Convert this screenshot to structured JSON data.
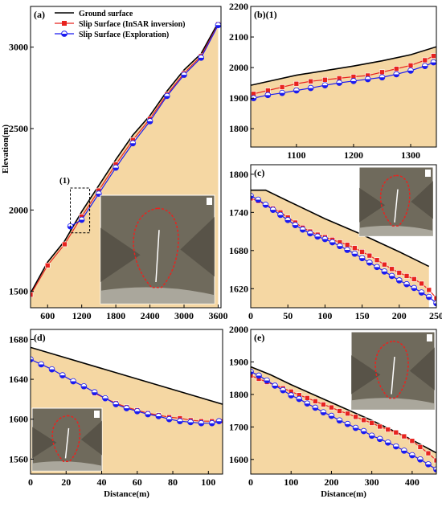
{
  "colors": {
    "fill": "#f5d7a3",
    "ground": "#000000",
    "insar": "#e8231f",
    "exploration": "#1b1bf0",
    "outline": "#e8231f",
    "satellite": "#6f6a5c"
  },
  "chart_data": [
    {
      "id": "a",
      "type": "line",
      "panel_label": "(a)",
      "xlabel": "",
      "ylabel": "Elevation(m)",
      "xlim": [
        300,
        3650
      ],
      "ylim": [
        1400,
        3250
      ],
      "xticks": [
        600,
        1200,
        1800,
        2400,
        3000,
        3600
      ],
      "yticks": [
        1500,
        2000,
        2500,
        3000
      ],
      "legend": [
        "Ground surface",
        "Slip Surface (InSAR inversion)",
        "Slip Surface (Exploration)"
      ],
      "annotation": "(1)",
      "ground_x": [
        300,
        600,
        900,
        1200,
        1500,
        1800,
        2100,
        2400,
        2700,
        3000,
        3300,
        3600
      ],
      "ground_y": [
        1490,
        1680,
        1810,
        1990,
        2150,
        2310,
        2460,
        2580,
        2730,
        2860,
        2960,
        3150
      ],
      "insar_x": [
        300,
        600,
        900,
        1200,
        1500,
        1800,
        2100,
        2400,
        2700,
        3000,
        3300,
        3600
      ],
      "insar_y": [
        1480,
        1660,
        1790,
        1960,
        2120,
        2280,
        2430,
        2560,
        2710,
        2840,
        2945,
        3140
      ],
      "exploration_x": [
        1000,
        1200,
        1500,
        1800,
        2100,
        2400,
        2700,
        3000,
        3300,
        3600
      ],
      "exploration_y": [
        1900,
        1940,
        2100,
        2260,
        2410,
        2545,
        2700,
        2830,
        2935,
        3135
      ]
    },
    {
      "id": "b",
      "type": "line",
      "panel_label": "(b)(1)",
      "xlim": [
        1020,
        1345
      ],
      "ylim": [
        1740,
        2200
      ],
      "xticks": [
        1100,
        1200,
        1300
      ],
      "yticks": [
        1800,
        1900,
        2000,
        2100,
        2200
      ],
      "ground_x": [
        1020,
        1100,
        1200,
        1250,
        1300,
        1345
      ],
      "ground_y": [
        1942,
        1975,
        2005,
        2022,
        2042,
        2068
      ],
      "insar_x": [
        1025,
        1050,
        1075,
        1100,
        1125,
        1150,
        1175,
        1200,
        1225,
        1250,
        1275,
        1300,
        1325,
        1340
      ],
      "insar_y": [
        1914,
        1925,
        1936,
        1947,
        1955,
        1960,
        1965,
        1970,
        1974,
        1985,
        1996,
        2007,
        2024,
        2038
      ],
      "exploration_x": [
        1025,
        1050,
        1075,
        1100,
        1125,
        1150,
        1175,
        1200,
        1225,
        1250,
        1275,
        1300,
        1325,
        1340
      ],
      "exploration_y": [
        1900,
        1910,
        1917,
        1925,
        1933,
        1942,
        1950,
        1956,
        1962,
        1968,
        1978,
        1990,
        2005,
        2017
      ]
    },
    {
      "id": "c",
      "type": "line",
      "panel_label": "(c)",
      "xlim": [
        0,
        250
      ],
      "ylim": [
        1590,
        1815
      ],
      "xticks": [
        0,
        50,
        100,
        150,
        200,
        250
      ],
      "yticks": [
        1620,
        1680,
        1740,
        1800
      ],
      "ground_x": [
        0,
        20,
        50,
        100,
        150,
        200,
        240
      ],
      "ground_y": [
        1775,
        1775,
        1758,
        1730,
        1705,
        1678,
        1655
      ],
      "insar_x": [
        0,
        10,
        20,
        30,
        40,
        50,
        60,
        70,
        80,
        90,
        100,
        110,
        120,
        130,
        140,
        150,
        160,
        170,
        180,
        190,
        200,
        210,
        220,
        230,
        240,
        250
      ],
      "insar_y": [
        1762,
        1758,
        1752,
        1746,
        1740,
        1732,
        1724,
        1716,
        1710,
        1705,
        1701,
        1697,
        1693,
        1689,
        1684,
        1678,
        1672,
        1665,
        1658,
        1651,
        1645,
        1640,
        1635,
        1628,
        1618,
        1605
      ],
      "exploration_x": [
        0,
        10,
        20,
        30,
        40,
        50,
        60,
        70,
        80,
        90,
        100,
        110,
        120,
        130,
        140,
        150,
        160,
        170,
        180,
        190,
        200,
        210,
        220,
        230,
        240,
        250
      ],
      "exploration_y": [
        1766,
        1760,
        1752,
        1744,
        1736,
        1728,
        1720,
        1713,
        1707,
        1702,
        1698,
        1693,
        1687,
        1681,
        1675,
        1668,
        1661,
        1654,
        1647,
        1640,
        1633,
        1627,
        1621,
        1614,
        1607,
        1597
      ]
    },
    {
      "id": "d",
      "type": "line",
      "panel_label": "(d)",
      "xlabel": "Distance(m)",
      "xlim": [
        0,
        108
      ],
      "ylim": [
        1545,
        1690
      ],
      "xticks": [
        0,
        20,
        40,
        60,
        80,
        100
      ],
      "yticks": [
        1560,
        1600,
        1640,
        1680
      ],
      "ground_x": [
        0,
        108
      ],
      "ground_y": [
        1672,
        1615
      ],
      "insar_x": [
        36,
        42,
        48,
        54,
        60,
        66,
        72,
        78,
        84,
        90,
        96,
        102,
        108
      ],
      "insar_y": [
        1626,
        1621,
        1616,
        1612,
        1609,
        1606,
        1604,
        1602,
        1601,
        1599,
        1598,
        1598,
        1598
      ],
      "exploration_x": [
        0,
        6,
        12,
        18,
        24,
        30,
        36,
        42,
        48,
        54,
        60,
        66,
        72,
        78,
        84,
        90,
        96,
        102,
        106
      ],
      "exploration_y": [
        1660,
        1655,
        1650,
        1644,
        1638,
        1633,
        1627,
        1621,
        1615,
        1611,
        1608,
        1605,
        1603,
        1600,
        1598,
        1597,
        1596,
        1596,
        1598
      ]
    },
    {
      "id": "e",
      "type": "line",
      "panel_label": "(e)",
      "xlabel": "Distance(m)",
      "xlim": [
        0,
        460
      ],
      "ylim": [
        1555,
        2000
      ],
      "xticks": [
        0,
        100,
        200,
        300,
        400
      ],
      "yticks": [
        1600,
        1700,
        1800,
        1900,
        2000
      ],
      "ground_x": [
        0,
        50,
        100,
        200,
        300,
        400,
        460
      ],
      "ground_y": [
        1885,
        1860,
        1830,
        1775,
        1720,
        1660,
        1620
      ],
      "insar_x": [
        0,
        20,
        40,
        60,
        80,
        100,
        120,
        140,
        160,
        180,
        200,
        220,
        240,
        260,
        280,
        300,
        320,
        340,
        360,
        380,
        400,
        420,
        440,
        460
      ],
      "insar_y": [
        1858,
        1848,
        1838,
        1829,
        1819,
        1809,
        1798,
        1789,
        1779,
        1769,
        1760,
        1749,
        1741,
        1731,
        1721,
        1712,
        1701,
        1692,
        1683,
        1671,
        1657,
        1638,
        1619,
        1597
      ],
      "exploration_x": [
        0,
        20,
        40,
        60,
        80,
        100,
        120,
        140,
        160,
        180,
        200,
        220,
        240,
        260,
        280,
        300,
        320,
        340,
        360,
        380,
        400,
        420,
        440,
        460
      ],
      "exploration_y": [
        1870,
        1858,
        1843,
        1827,
        1813,
        1797,
        1786,
        1772,
        1759,
        1745,
        1734,
        1720,
        1709,
        1697,
        1687,
        1673,
        1663,
        1652,
        1640,
        1627,
        1613,
        1600,
        1585,
        1569
      ]
    }
  ]
}
